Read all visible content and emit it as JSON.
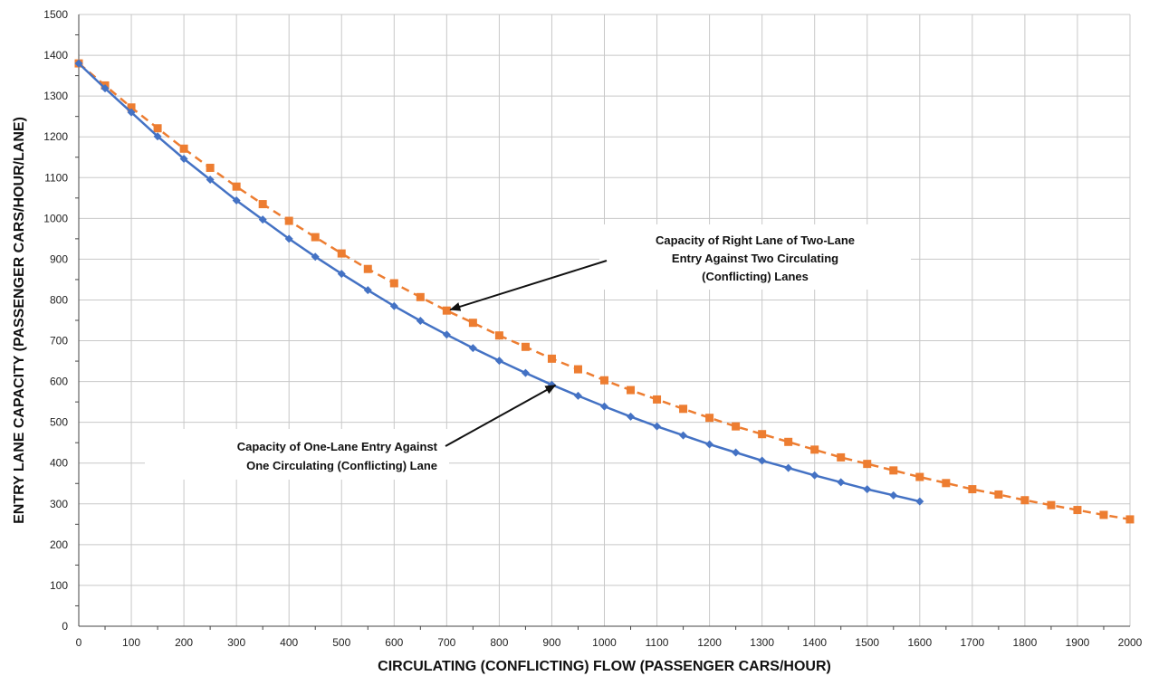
{
  "chart_data": {
    "type": "line",
    "title": "",
    "xlabel": "CIRCULATING (CONFLICTING) FLOW (PASSENGER CARS/HOUR)",
    "ylabel": "ENTRY LANE CAPACITY (PASSENGER CARS/HOUR/LANE)",
    "xlim": [
      0,
      2000
    ],
    "ylim": [
      0,
      1500
    ],
    "xticks": [
      0,
      100,
      200,
      300,
      400,
      500,
      600,
      700,
      800,
      900,
      1000,
      1100,
      1200,
      1300,
      1400,
      1500,
      1600,
      1700,
      1800,
      1900,
      2000
    ],
    "yticks": [
      0,
      100,
      200,
      300,
      400,
      500,
      600,
      700,
      800,
      900,
      1000,
      1100,
      1200,
      1300,
      1400,
      1500
    ],
    "grid": true,
    "series": [
      {
        "color": "#4472C4",
        "line_style": "solid",
        "marker": "diamond",
        "x": [
          0,
          50,
          100,
          150,
          200,
          250,
          300,
          350,
          400,
          450,
          500,
          550,
          600,
          650,
          700,
          750,
          800,
          850,
          900,
          950,
          1000,
          1050,
          1100,
          1150,
          1200,
          1250,
          1300,
          1350,
          1400,
          1450,
          1500,
          1550,
          1600
        ],
        "y": [
          1380,
          1319,
          1260,
          1201,
          1146,
          1095,
          1044,
          997,
          950,
          906,
          864,
          824,
          785,
          749,
          715,
          682,
          651,
          621,
          592,
          565,
          539,
          514,
          490,
          468,
          446,
          426,
          406,
          388,
          370,
          353,
          336,
          321,
          306
        ]
      },
      {
        "color": "#ED7D31",
        "line_style": "dashed",
        "marker": "square",
        "x": [
          0,
          50,
          100,
          150,
          200,
          250,
          300,
          350,
          400,
          450,
          500,
          550,
          600,
          650,
          700,
          750,
          800,
          850,
          900,
          950,
          1000,
          1050,
          1100,
          1150,
          1200,
          1250,
          1300,
          1350,
          1400,
          1450,
          1500,
          1550,
          1600,
          1650,
          1700,
          1750,
          1800,
          1850,
          1900,
          1950,
          2000
        ],
        "y": [
          1380,
          1326,
          1272,
          1221,
          1171,
          1124,
          1078,
          1035,
          994,
          954,
          914,
          876,
          841,
          807,
          774,
          744,
          713,
          685,
          656,
          630,
          603,
          579,
          556,
          533,
          511,
          490,
          471,
          452,
          433,
          414,
          398,
          382,
          366,
          351,
          336,
          323,
          309,
          297,
          285,
          273,
          262
        ]
      }
    ],
    "annotations": [
      {
        "lines": [
          "Capacity of Right Lane of Two-Lane",
          "Entry Against Two Circulating",
          "(Conflicting) Lanes"
        ],
        "arrow_to": [
          700,
          785
        ]
      },
      {
        "lines": [
          "Capacity of One-Lane Entry Against",
          "One Circulating (Conflicting) Lane"
        ],
        "arrow_to": [
          900,
          600
        ]
      }
    ]
  }
}
